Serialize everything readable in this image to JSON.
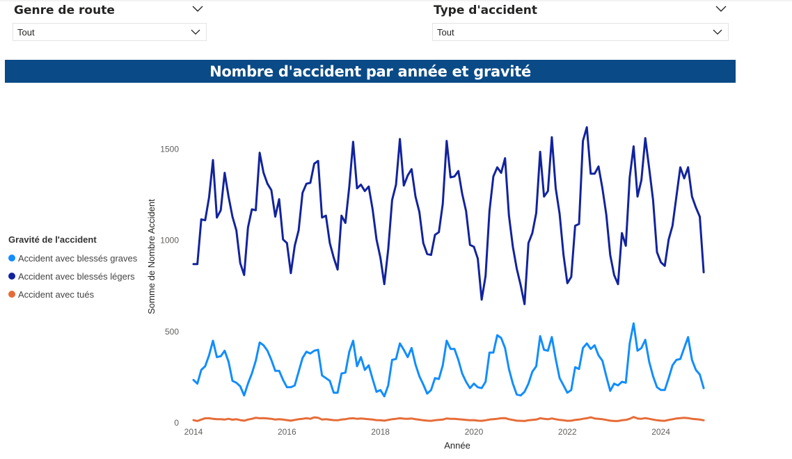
{
  "filters": {
    "genre_route": {
      "title": "Genre de route",
      "value": "Tout"
    },
    "type_accident": {
      "title": "Type d'accident",
      "value": "Tout"
    }
  },
  "colors": {
    "banner": "#0a4a86",
    "blesses_graves": "#118dff",
    "blesses_legers": "#12239e",
    "tues": "#e66c37"
  },
  "chart_data": {
    "type": "line",
    "title": "Nombre d'accident par année et gravité",
    "xlabel": "Année",
    "ylabel": "Somme de Nombre Accident",
    "xlim": [
      2014,
      2024.9
    ],
    "ylim": [
      0,
      1650
    ],
    "x_ticks": [
      "2014",
      "2016",
      "2018",
      "2020",
      "2022",
      "2024"
    ],
    "y_ticks": [
      "0",
      "500",
      "1000",
      "1500"
    ],
    "legend_title": "Gravité de l'accident",
    "legend_position": "left",
    "grid": false,
    "x": [
      "2014-01",
      "2014-02",
      "2014-03",
      "2014-04",
      "2014-05",
      "2014-06",
      "2014-07",
      "2014-08",
      "2014-09",
      "2014-10",
      "2014-11",
      "2014-12",
      "2015-01",
      "2015-02",
      "2015-03",
      "2015-04",
      "2015-05",
      "2015-06",
      "2015-07",
      "2015-08",
      "2015-09",
      "2015-10",
      "2015-11",
      "2015-12",
      "2016-01",
      "2016-02",
      "2016-03",
      "2016-04",
      "2016-05",
      "2016-06",
      "2016-07",
      "2016-08",
      "2016-09",
      "2016-10",
      "2016-11",
      "2016-12",
      "2017-01",
      "2017-02",
      "2017-03",
      "2017-04",
      "2017-05",
      "2017-06",
      "2017-07",
      "2017-08",
      "2017-09",
      "2017-10",
      "2017-11",
      "2017-12",
      "2018-01",
      "2018-02",
      "2018-03",
      "2018-04",
      "2018-05",
      "2018-06",
      "2018-07",
      "2018-08",
      "2018-09",
      "2018-10",
      "2018-11",
      "2018-12",
      "2019-01",
      "2019-02",
      "2019-03",
      "2019-04",
      "2019-05",
      "2019-06",
      "2019-07",
      "2019-08",
      "2019-09",
      "2019-10",
      "2019-11",
      "2019-12",
      "2020-01",
      "2020-02",
      "2020-03",
      "2020-04",
      "2020-05",
      "2020-06",
      "2020-07",
      "2020-08",
      "2020-09",
      "2020-10",
      "2020-11",
      "2020-12",
      "2021-01",
      "2021-02",
      "2021-03",
      "2021-04",
      "2021-05",
      "2021-06",
      "2021-07",
      "2021-08",
      "2021-09",
      "2021-10",
      "2021-11",
      "2021-12",
      "2022-01",
      "2022-02",
      "2022-03",
      "2022-04",
      "2022-05",
      "2022-06",
      "2022-07",
      "2022-08",
      "2022-09",
      "2022-10",
      "2022-11",
      "2022-12",
      "2023-01",
      "2023-02",
      "2023-03",
      "2023-04",
      "2023-05",
      "2023-06",
      "2023-07",
      "2023-08",
      "2023-09",
      "2023-10",
      "2023-11",
      "2023-12",
      "2024-01",
      "2024-02",
      "2024-03",
      "2024-04",
      "2024-05",
      "2024-06",
      "2024-07",
      "2024-08",
      "2024-09",
      "2024-10",
      "2024-11",
      "2024-12"
    ],
    "series": [
      {
        "name": "Accident avec blessés graves",
        "color": "#118dff",
        "values": [
          235,
          215,
          290,
          310,
          370,
          450,
          360,
          365,
          395,
          335,
          230,
          220,
          200,
          150,
          215,
          270,
          340,
          440,
          425,
          395,
          345,
          285,
          285,
          235,
          195,
          195,
          205,
          280,
          355,
          390,
          380,
          395,
          400,
          260,
          245,
          230,
          165,
          165,
          270,
          275,
          390,
          450,
          310,
          360,
          290,
          315,
          240,
          170,
          180,
          145,
          205,
          345,
          350,
          435,
          400,
          360,
          410,
          320,
          255,
          210,
          160,
          180,
          245,
          240,
          315,
          450,
          405,
          405,
          345,
          270,
          225,
          190,
          215,
          195,
          190,
          225,
          385,
          385,
          480,
          465,
          410,
          295,
          215,
          155,
          150,
          170,
          215,
          280,
          310,
          475,
          400,
          395,
          470,
          350,
          245,
          205,
          165,
          180,
          305,
          295,
          410,
          435,
          405,
          425,
          370,
          340,
          255,
          175,
          215,
          205,
          225,
          220,
          435,
          545,
          395,
          410,
          455,
          335,
          255,
          195,
          180,
          180,
          245,
          315,
          345,
          350,
          410,
          470,
          345,
          290,
          265,
          190
        ]
      },
      {
        "name": "Accident avec blessés légers",
        "color": "#12239e",
        "values": [
          870,
          870,
          1115,
          1110,
          1235,
          1440,
          1125,
          1165,
          1370,
          1240,
          1130,
          1055,
          875,
          810,
          1070,
          1170,
          1165,
          1480,
          1370,
          1310,
          1275,
          1130,
          1225,
          1005,
          985,
          820,
          970,
          1055,
          1260,
          1310,
          1315,
          1420,
          1435,
          1125,
          1135,
          985,
          905,
          840,
          1135,
          1095,
          1295,
          1540,
          1285,
          1305,
          1270,
          1295,
          1170,
          1005,
          905,
          760,
          950,
          1220,
          1305,
          1555,
          1300,
          1355,
          1390,
          1240,
          1155,
          985,
          925,
          920,
          1030,
          1045,
          1200,
          1545,
          1345,
          1350,
          1380,
          1255,
          1160,
          975,
          965,
          900,
          675,
          805,
          1160,
          1350,
          1400,
          1370,
          1450,
          1135,
          965,
          845,
          755,
          650,
          985,
          1040,
          1150,
          1485,
          1240,
          1270,
          1565,
          1285,
          1145,
          920,
          765,
          800,
          1080,
          1090,
          1545,
          1620,
          1365,
          1365,
          1405,
          1285,
          1140,
          920,
          810,
          760,
          1040,
          970,
          1345,
          1515,
          1240,
          1330,
          1560,
          1395,
          1220,
          935,
          880,
          860,
          1005,
          1080,
          1240,
          1400,
          1340,
          1400,
          1240,
          1180,
          1130,
          825
        ]
      },
      {
        "name": "Accident avec tués",
        "color": "#e66c37",
        "values": [
          15,
          10,
          18,
          25,
          25,
          22,
          20,
          20,
          18,
          22,
          17,
          20,
          15,
          12,
          18,
          22,
          28,
          25,
          26,
          24,
          22,
          18,
          20,
          18,
          15,
          12,
          16,
          20,
          22,
          25,
          22,
          30,
          28,
          18,
          20,
          17,
          15,
          14,
          18,
          20,
          24,
          25,
          22,
          24,
          22,
          20,
          18,
          15,
          14,
          12,
          16,
          20,
          22,
          25,
          23,
          22,
          24,
          20,
          17,
          14,
          12,
          11,
          14,
          16,
          18,
          24,
          22,
          22,
          20,
          18,
          16,
          14,
          15,
          12,
          11,
          14,
          18,
          20,
          22,
          25,
          26,
          20,
          16,
          12,
          11,
          10,
          14,
          16,
          18,
          25,
          22,
          20,
          24,
          20,
          16,
          14,
          11,
          12,
          16,
          18,
          22,
          25,
          30,
          24,
          22,
          20,
          16,
          12,
          10,
          10,
          14,
          16,
          22,
          32,
          24,
          22,
          26,
          22,
          18,
          14,
          12,
          11,
          16,
          20,
          24,
          26,
          28,
          26,
          22,
          20,
          18,
          14
        ]
      }
    ]
  }
}
